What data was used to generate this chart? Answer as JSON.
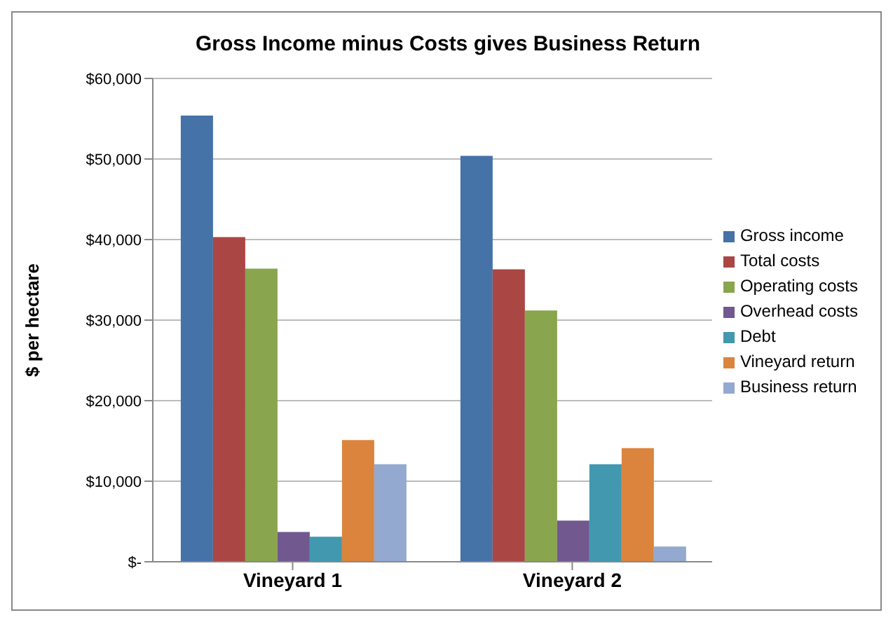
{
  "chart_data": {
    "type": "bar",
    "title": "Gross Income minus Costs gives Business Return",
    "ylabel": "$ per hectare",
    "categories": [
      "Vineyard 1",
      "Vineyard 2"
    ],
    "series": [
      {
        "name": "Gross income",
        "color": "#4572a7",
        "values": [
          55400,
          50400
        ]
      },
      {
        "name": "Total costs",
        "color": "#aa4643",
        "values": [
          40300,
          36300
        ]
      },
      {
        "name": "Operating costs",
        "color": "#89a54e",
        "values": [
          36400,
          31200
        ]
      },
      {
        "name": "Overhead  costs",
        "color": "#71588f",
        "values": [
          3700,
          5100
        ]
      },
      {
        "name": "Debt",
        "color": "#4198af",
        "values": [
          3100,
          12100
        ]
      },
      {
        "name": "Vineyard return",
        "color": "#db843d",
        "values": [
          15100,
          14100
        ]
      },
      {
        "name": "Business return",
        "color": "#93a9cf",
        "values": [
          12100,
          1900
        ]
      }
    ],
    "ylim": [
      0,
      60000
    ],
    "yticks": [
      {
        "value": 0,
        "label": "$-"
      },
      {
        "value": 10000,
        "label": "$10,000"
      },
      {
        "value": 20000,
        "label": "$20,000"
      },
      {
        "value": 30000,
        "label": "$30,000"
      },
      {
        "value": 40000,
        "label": "$40,000"
      },
      {
        "value": 50000,
        "label": "$50,000"
      },
      {
        "value": 60000,
        "label": "$60,000"
      }
    ],
    "grid": "y",
    "legend": "right"
  }
}
